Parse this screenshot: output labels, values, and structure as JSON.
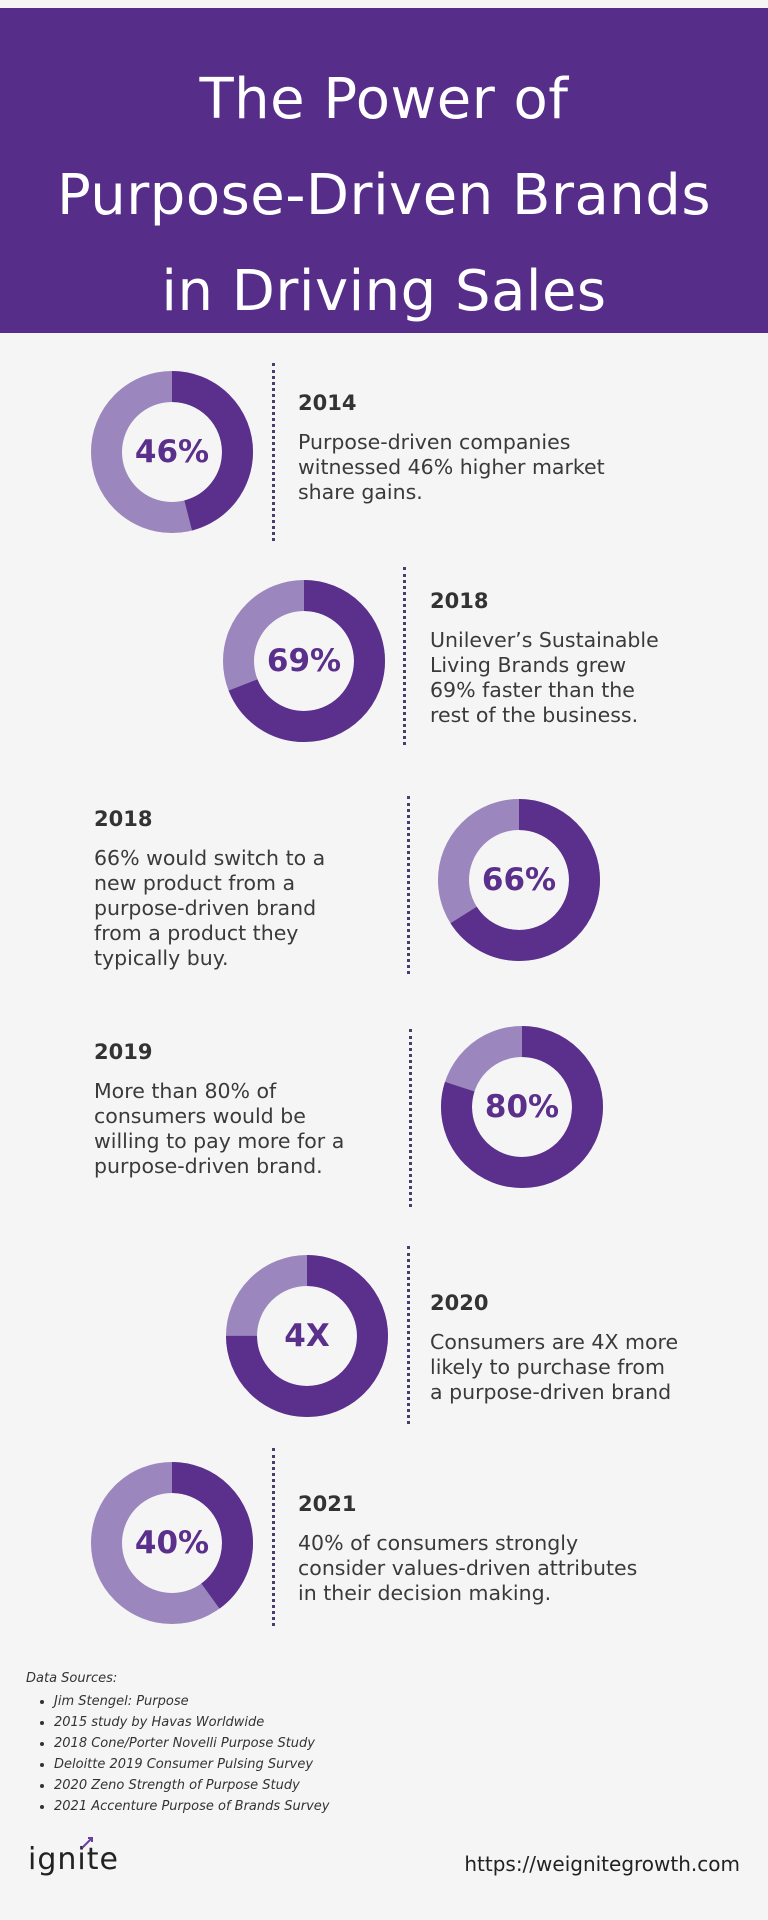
{
  "header": {
    "title_line1": "The Power of",
    "title_line2": "Purpose-Driven Brands",
    "title_line3": "in Driving  Sales"
  },
  "colors": {
    "brand_purple": "#562d88",
    "dark_purple": "#5b2f8c",
    "light_purple": "#9b86bd",
    "background": "#f5f5f5"
  },
  "stats": [
    {
      "value_label": "46%",
      "fill_percent": 46,
      "year": "2014",
      "text": "Purpose-driven companies\nwitnessed 46% higher market\nshare gains."
    },
    {
      "value_label": "69%",
      "fill_percent": 69,
      "year": "2018",
      "text": "Unilever’s Sustainable\nLiving Brands grew\n69% faster than the\nrest of the business."
    },
    {
      "value_label": "66%",
      "fill_percent": 66,
      "year": "2018",
      "text": "66% would switch to a\nnew product from a\npurpose-driven brand\nfrom a product they\ntypically buy."
    },
    {
      "value_label": "80%",
      "fill_percent": 80,
      "year": "2019",
      "text": "More than 80% of\nconsumers would be\nwilling to pay more for a\npurpose-driven brand."
    },
    {
      "value_label": "4X",
      "fill_percent": 75,
      "year": "2020",
      "text": "Consumers are 4X more\nlikely to purchase from\na purpose-driven brand"
    },
    {
      "value_label": "40%",
      "fill_percent": 40,
      "year": "2021",
      "text": "40% of consumers strongly\nconsider values-driven attributes\nin their decision making."
    }
  ],
  "sources": {
    "heading": "Data Sources:",
    "items": [
      "Jim Stengel: Purpose",
      "2015 study by Havas Worldwide",
      "2018 Cone/Porter Novelli Purpose Study",
      "Deloitte 2019 Consumer Pulsing Survey",
      "2020 Zeno Strength of Purpose Study",
      "2021 Accenture Purpose of Brands Survey"
    ]
  },
  "footer": {
    "logo_text": "ignite",
    "url": "https://weignitegrowth.com"
  }
}
